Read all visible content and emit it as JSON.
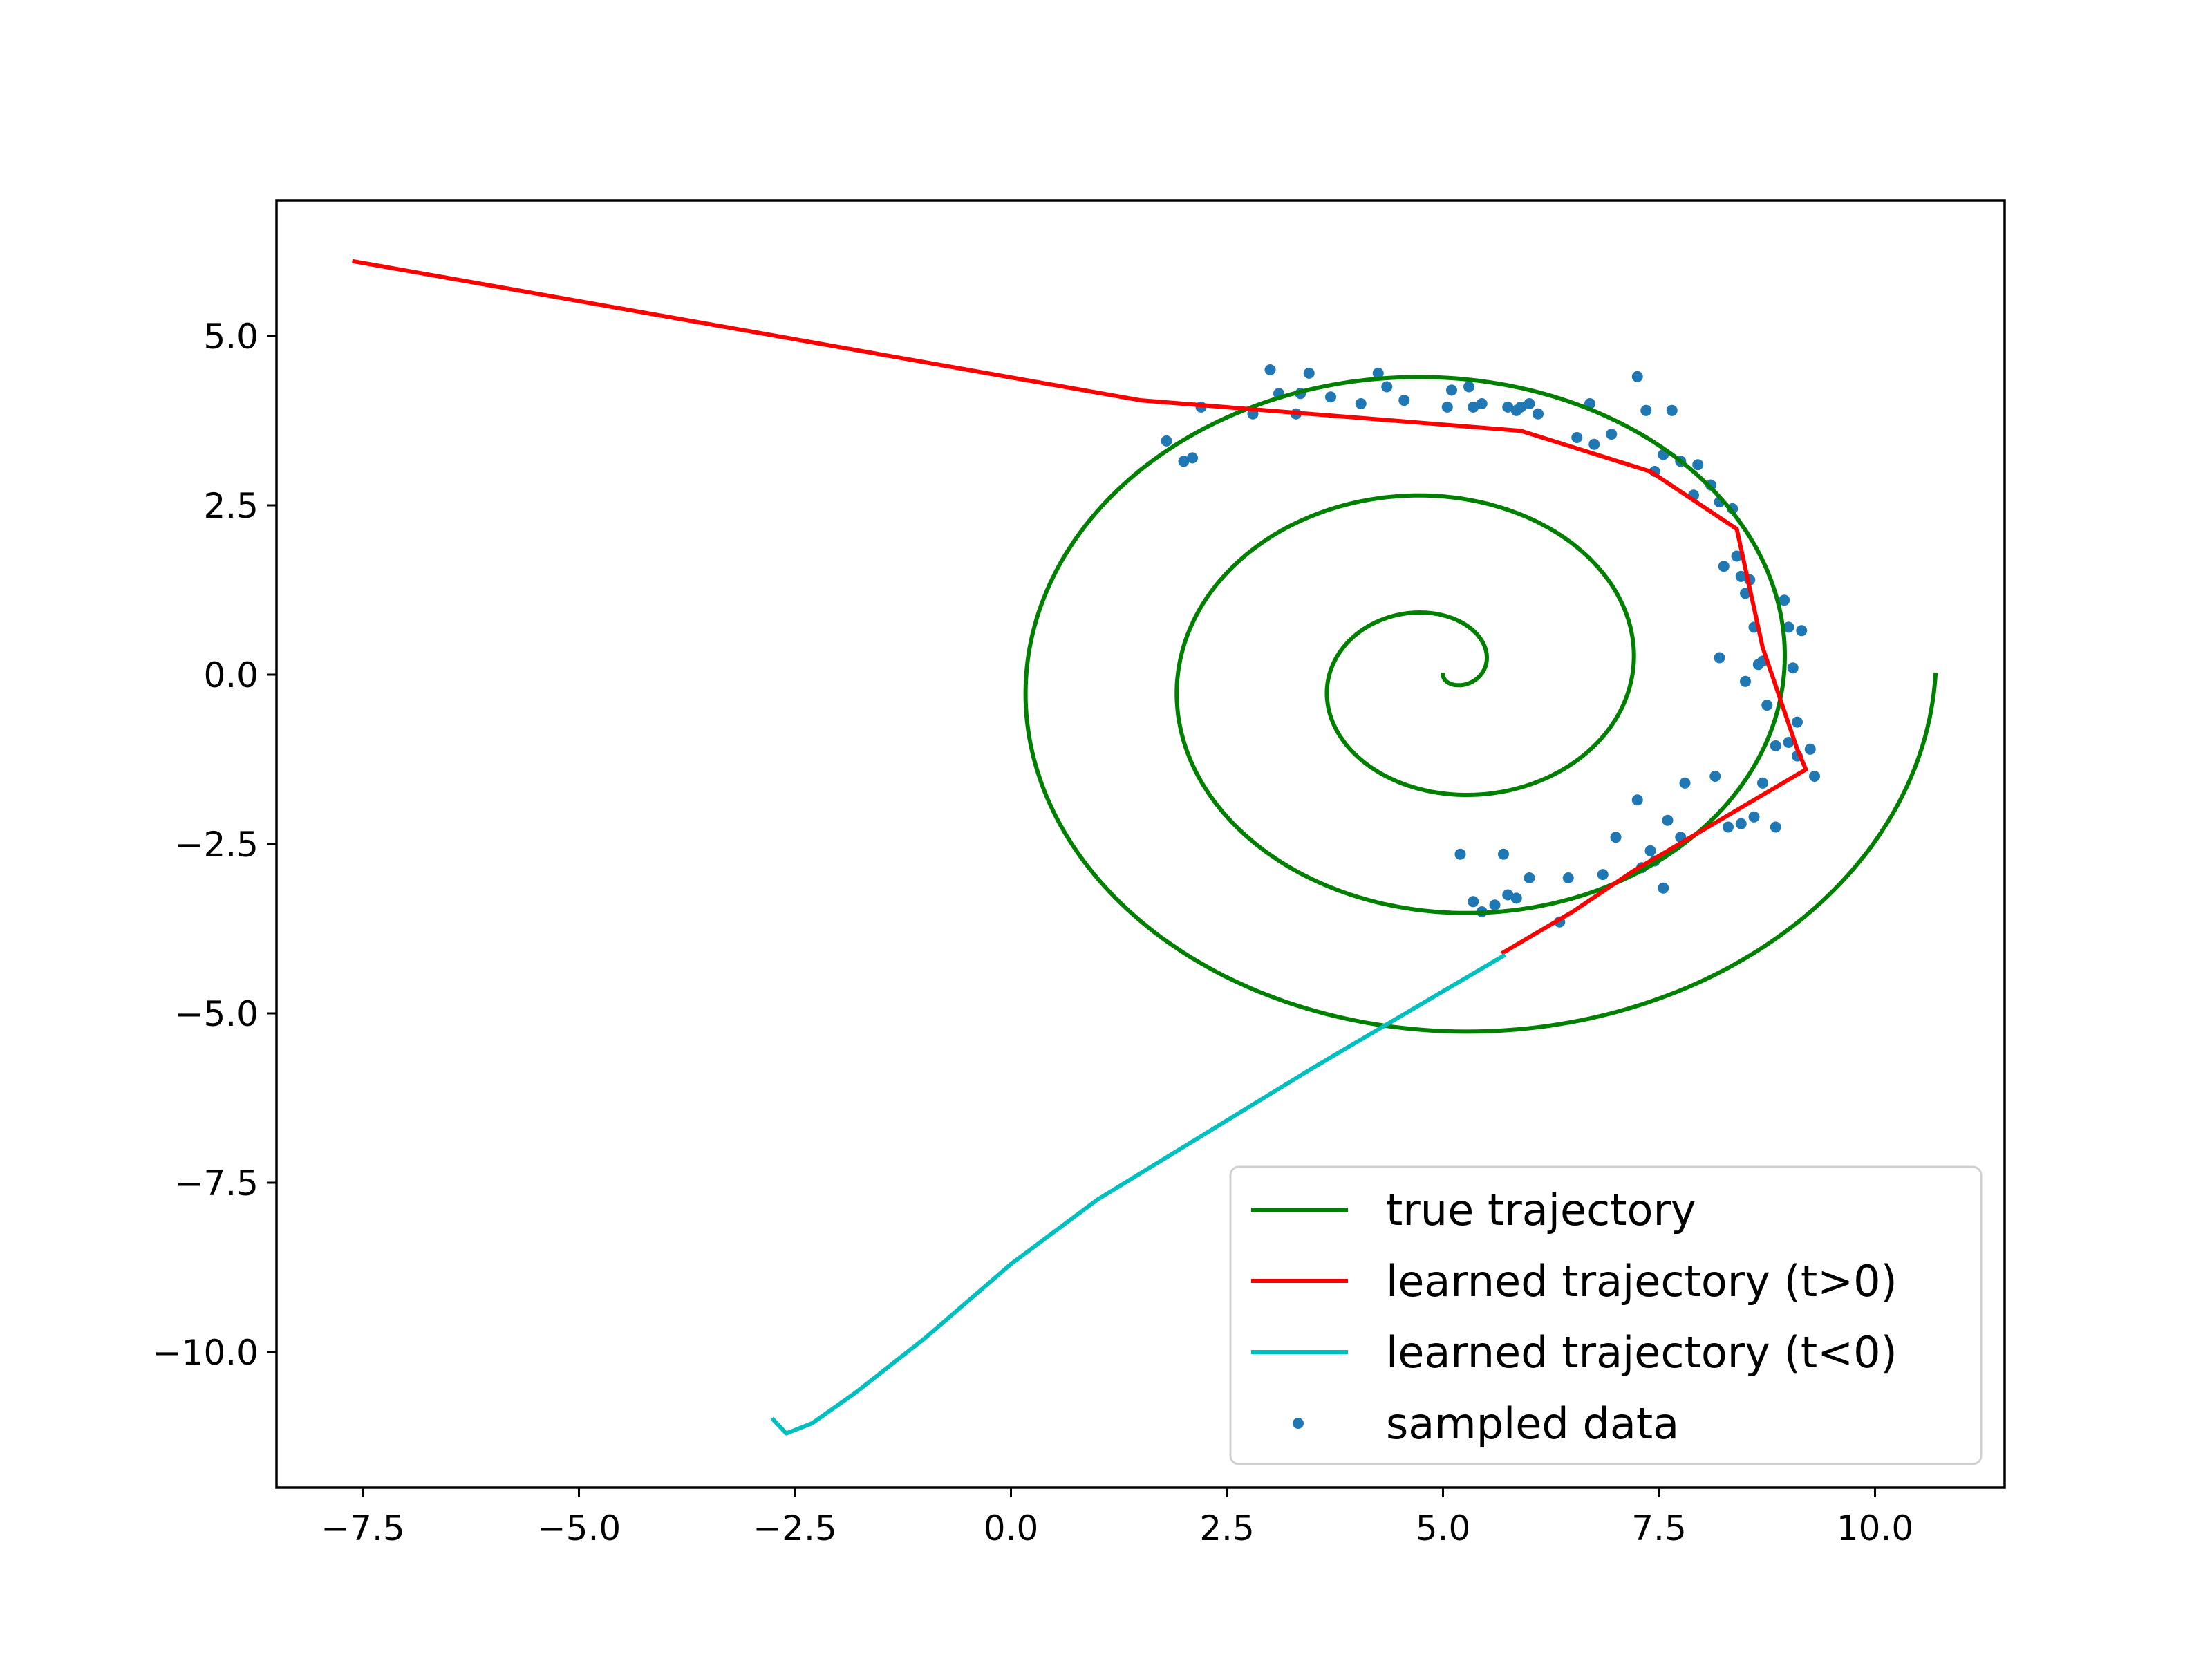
{
  "chart_data": {
    "type": "line",
    "title": "",
    "xlabel": "",
    "ylabel": "",
    "xlim": [
      -8.5,
      11.5
    ],
    "ylim": [
      -12.0,
      7.0
    ],
    "x_ticks": [
      -7.5,
      -5.0,
      -2.5,
      0.0,
      2.5,
      5.0,
      7.5,
      10.0
    ],
    "y_ticks": [
      5.0,
      2.5,
      0.0,
      -2.5,
      -5.0,
      -7.5,
      -10.0
    ],
    "grid": false,
    "legend_position": "lower-right",
    "series": [
      {
        "name": "true trajectory",
        "kind": "line",
        "color": "#008000",
        "spiral": {
          "center": [
            5.0,
            0.0
          ],
          "x_start": 10.7,
          "y_start": 0.0,
          "revolutions": 3.25,
          "end": [
            5.0,
            0.0
          ]
        }
      },
      {
        "name": "learned trajectory (t>0)",
        "kind": "line",
        "color": "#ff0000",
        "x": [
          5.7,
          6.5,
          7.2,
          8.0,
          9.2,
          9.1,
          8.7,
          8.4,
          7.4,
          5.9,
          1.5,
          -7.6
        ],
        "y": [
          -4.1,
          -3.5,
          -2.9,
          -2.3,
          -1.4,
          -1.1,
          0.4,
          2.15,
          3.0,
          3.6,
          4.05,
          6.1
        ]
      },
      {
        "name": "learned trajectory (t<0)",
        "kind": "line",
        "color": "#00bfbf",
        "x": [
          5.7,
          3.5,
          1.0,
          0.0,
          -1.0,
          -1.8,
          -2.3,
          -2.6,
          -2.75
        ],
        "y": [
          -4.15,
          -5.8,
          -7.75,
          -8.7,
          -9.8,
          -10.6,
          -11.05,
          -11.2,
          -11.0
        ]
      },
      {
        "name": "sampled data",
        "kind": "scatter",
        "color": "#1f77b4",
        "x": [
          1.8,
          2.0,
          2.1,
          2.2,
          2.8,
          3.0,
          3.1,
          3.3,
          3.35,
          3.45,
          3.7,
          4.05,
          4.25,
          4.35,
          4.55,
          5.05,
          5.1,
          5.3,
          5.35,
          5.45,
          5.75,
          5.85,
          5.9,
          6.0,
          6.1,
          6.55,
          6.75,
          6.7,
          6.95,
          7.25,
          7.35,
          7.45,
          7.55,
          7.65,
          7.75,
          7.9,
          7.95,
          8.1,
          8.2,
          8.25,
          8.35,
          8.4,
          8.45,
          8.5,
          8.55,
          8.6,
          8.65,
          8.7,
          8.75,
          8.85,
          8.95,
          9.0,
          9.05,
          9.1,
          9.15,
          9.25,
          9.3,
          8.2,
          8.5,
          8.7,
          9.0,
          9.1,
          8.6,
          8.45,
          8.3,
          8.15,
          7.8,
          7.6,
          7.4,
          7.3,
          7.0,
          6.85,
          6.45,
          6.35,
          6.0,
          5.85,
          5.75,
          5.7,
          5.6,
          5.45,
          5.35,
          5.2,
          7.55,
          7.45,
          7.75,
          7.25,
          8.85
        ],
        "y": [
          3.45,
          3.15,
          3.2,
          3.95,
          3.85,
          4.5,
          4.15,
          3.85,
          4.15,
          4.45,
          4.1,
          4.0,
          4.45,
          4.25,
          4.05,
          3.95,
          4.2,
          4.25,
          3.95,
          4.0,
          3.95,
          3.9,
          3.95,
          4.0,
          3.85,
          3.5,
          3.4,
          4.0,
          3.55,
          4.4,
          3.9,
          3.0,
          3.25,
          3.9,
          3.15,
          2.65,
          3.1,
          2.8,
          2.55,
          1.6,
          2.45,
          1.75,
          1.45,
          1.2,
          1.4,
          0.7,
          0.15,
          0.2,
          -0.45,
          -1.05,
          1.1,
          0.7,
          0.1,
          -0.7,
          0.65,
          -1.1,
          -1.5,
          0.25,
          -0.1,
          -1.6,
          -1.0,
          -1.2,
          -2.1,
          -2.2,
          -2.25,
          -1.5,
          -1.6,
          -2.15,
          -2.6,
          -2.85,
          -2.4,
          -2.95,
          -3.0,
          -3.65,
          -3.0,
          -3.3,
          -3.25,
          -2.65,
          -3.4,
          -3.5,
          -3.35,
          -2.65,
          -3.15,
          -2.75,
          -2.4,
          -1.85,
          -2.25
        ]
      }
    ]
  }
}
